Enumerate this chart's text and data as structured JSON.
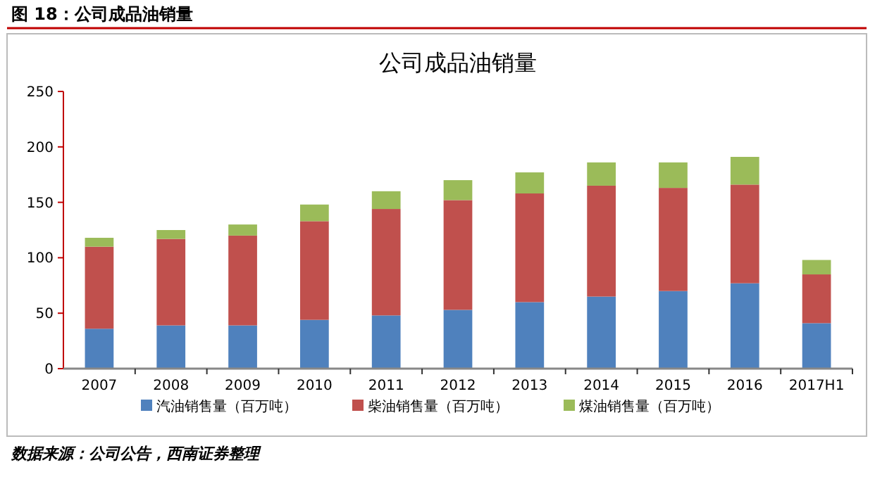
{
  "chart_data": {
    "type": "bar",
    "title": "公司成品油销量",
    "subtitle": "图 18：公司成品油销量",
    "annotations": [
      "数据来源：公司公告，西南证券整理"
    ],
    "stacked": true,
    "categories": [
      "2007",
      "2008",
      "2009",
      "2010",
      "2011",
      "2012",
      "2013",
      "2014",
      "2015",
      "2016",
      "2017H1"
    ],
    "series": [
      {
        "name": "汽油销售量（百万吨）",
        "color": "#4f81bd",
        "values": [
          36,
          39,
          39,
          44,
          48,
          53,
          60,
          65,
          70,
          77,
          41
        ]
      },
      {
        "name": "柴油销售量（百万吨）",
        "color": "#c0504d",
        "values": [
          74,
          78,
          81,
          89,
          96,
          99,
          98,
          100,
          93,
          89,
          44
        ]
      },
      {
        "name": "煤油销售量（百万吨）",
        "color": "#9bbb59",
        "values": [
          8,
          8,
          10,
          15,
          16,
          18,
          19,
          21,
          23,
          25,
          13
        ]
      }
    ],
    "ylim": [
      0,
      250
    ],
    "yticks": [
      0,
      50,
      100,
      150,
      200,
      250
    ],
    "legend": "bottom"
  }
}
